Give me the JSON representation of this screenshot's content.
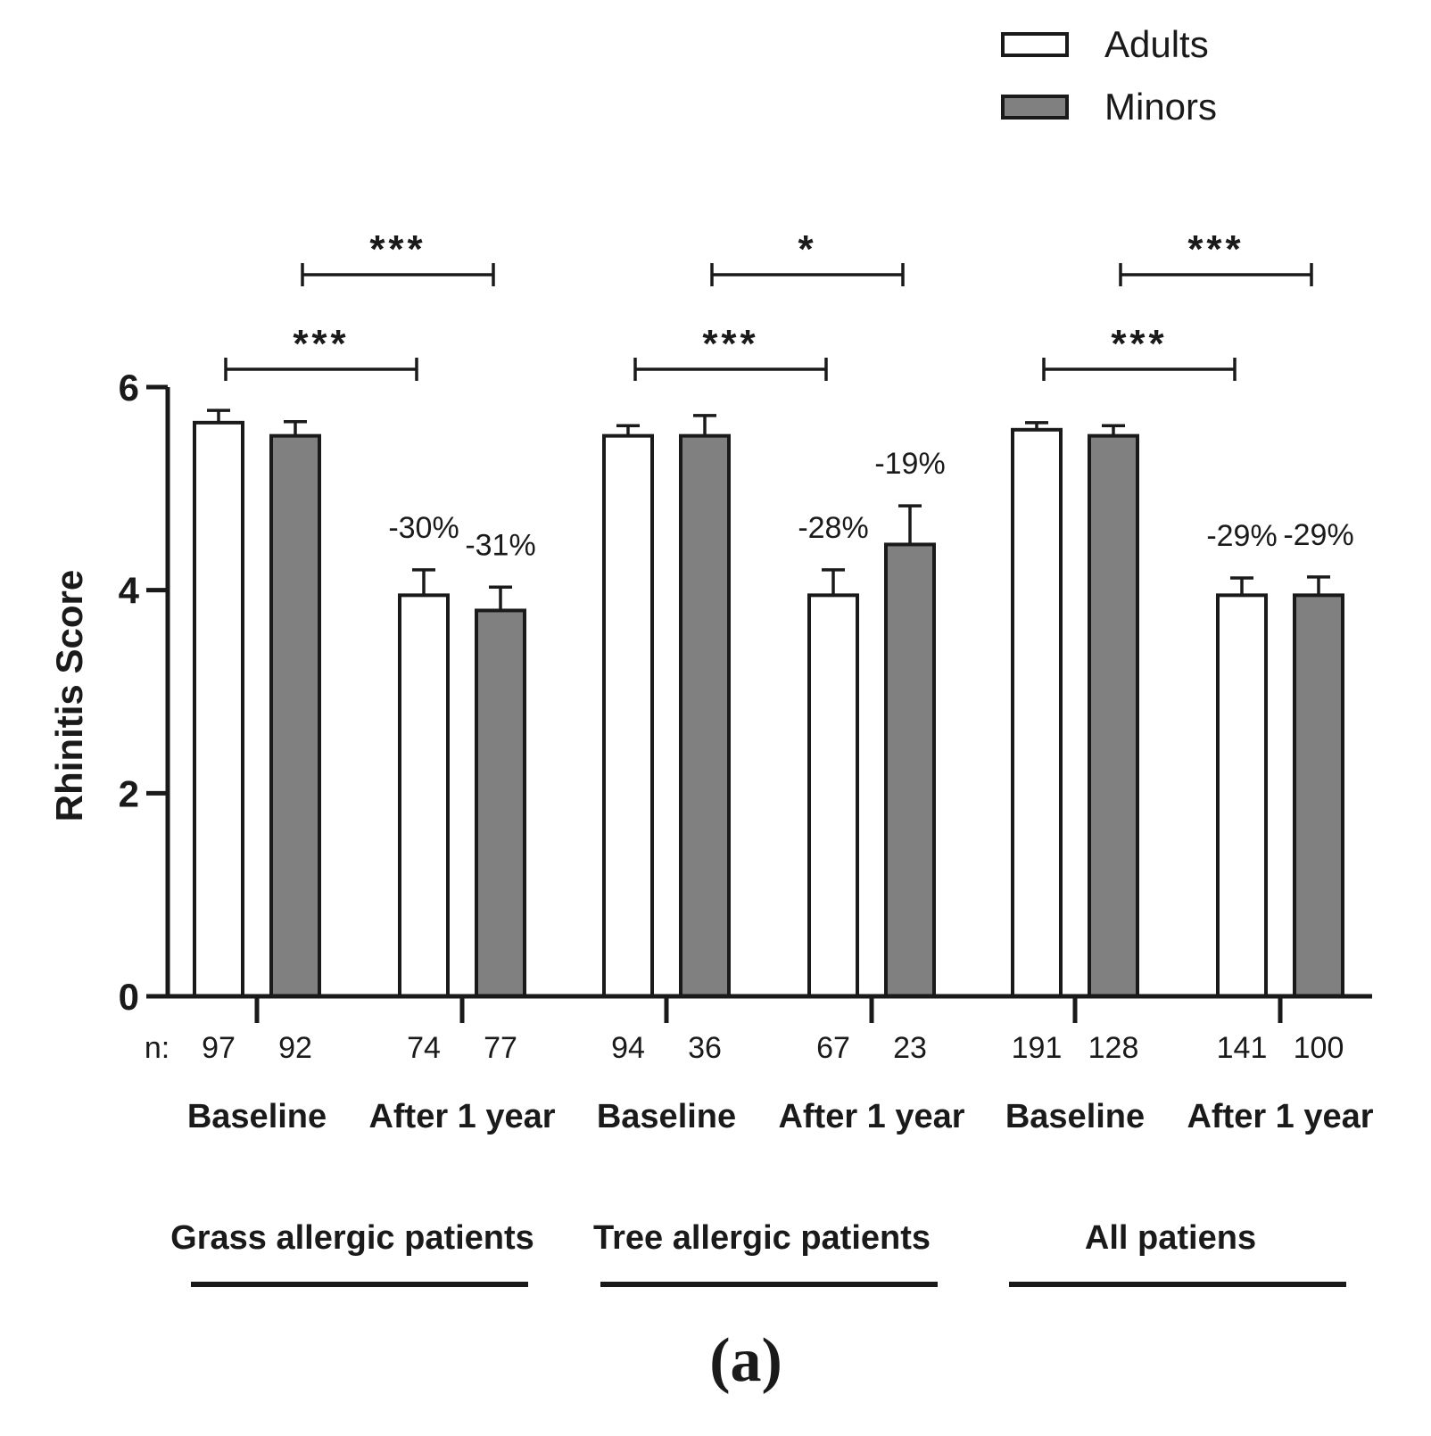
{
  "chart_data": {
    "type": "bar",
    "ylabel": "Rhinitis Score",
    "ylim": [
      0,
      6
    ],
    "yticks": [
      0,
      2,
      4,
      6
    ],
    "caption": "(a)",
    "n_prefix": "n:",
    "legend": {
      "position": "top-right",
      "entries": [
        {
          "name": "Adults",
          "color": "#ffffff"
        },
        {
          "name": "Minors",
          "color": "#808080"
        }
      ]
    },
    "groups": [
      {
        "label": "Grass allergic patients",
        "timepoints": [
          {
            "label": "Baseline",
            "bars": [
              {
                "series": "Adults",
                "value": 5.65,
                "error": 0.12,
                "n": "97"
              },
              {
                "series": "Minors",
                "value": 5.52,
                "error": 0.14,
                "n": "92"
              }
            ]
          },
          {
            "label": "After 1 year",
            "bars": [
              {
                "series": "Adults",
                "value": 3.95,
                "error": 0.25,
                "n": "74",
                "change": "-30%"
              },
              {
                "series": "Minors",
                "value": 3.8,
                "error": 0.23,
                "n": "77",
                "change": "-31%"
              }
            ]
          }
        ],
        "significance": [
          {
            "label": "***",
            "series": "Adults"
          },
          {
            "label": "***",
            "series": "Minors"
          }
        ]
      },
      {
        "label": "Tree allergic patients",
        "timepoints": [
          {
            "label": "Baseline",
            "bars": [
              {
                "series": "Adults",
                "value": 5.52,
                "error": 0.1,
                "n": "94"
              },
              {
                "series": "Minors",
                "value": 5.52,
                "error": 0.2,
                "n": "36"
              }
            ]
          },
          {
            "label": "After 1 year",
            "bars": [
              {
                "series": "Adults",
                "value": 3.95,
                "error": 0.25,
                "n": "67",
                "change": "-28%"
              },
              {
                "series": "Minors",
                "value": 4.45,
                "error": 0.38,
                "n": "23",
                "change": "-19%"
              }
            ]
          }
        ],
        "significance": [
          {
            "label": "***",
            "series": "Adults"
          },
          {
            "label": "*",
            "series": "Minors"
          }
        ]
      },
      {
        "label": "All patiens",
        "timepoints": [
          {
            "label": "Baseline",
            "bars": [
              {
                "series": "Adults",
                "value": 5.58,
                "error": 0.07,
                "n": "191"
              },
              {
                "series": "Minors",
                "value": 5.52,
                "error": 0.1,
                "n": "128"
              }
            ]
          },
          {
            "label": "After 1 year",
            "bars": [
              {
                "series": "Adults",
                "value": 3.95,
                "error": 0.17,
                "n": "141",
                "change": "-29%"
              },
              {
                "series": "Minors",
                "value": 3.95,
                "error": 0.18,
                "n": "100",
                "change": "-29%"
              }
            ]
          }
        ],
        "significance": [
          {
            "label": "***",
            "series": "Adults"
          },
          {
            "label": "***",
            "series": "Minors"
          }
        ]
      }
    ]
  }
}
